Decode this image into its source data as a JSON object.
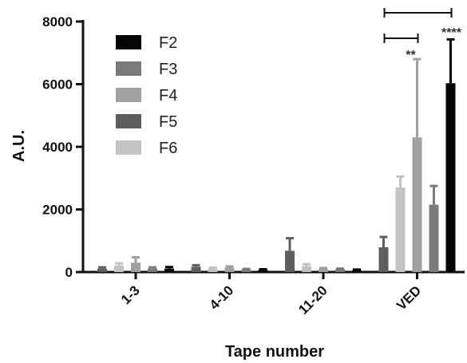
{
  "chart_data": {
    "type": "bar",
    "title": "",
    "xlabel": "Tape number",
    "ylabel": "A.U.",
    "ylim": [
      0,
      8000
    ],
    "yticks": [
      0,
      2000,
      4000,
      6000,
      8000
    ],
    "ytick_labels": [
      "0",
      "2000",
      "4000",
      "6000",
      "8000"
    ],
    "categories": [
      "1-3",
      "4-10",
      "11-20",
      "VED"
    ],
    "legend_position": "top-left",
    "grid": false,
    "series": [
      {
        "name": "F5",
        "color": "#5e5e5e",
        "values": [
          110,
          170,
          680,
          790
        ],
        "errors": [
          40,
          50,
          400,
          330
        ]
      },
      {
        "name": "F6",
        "color": "#c3c3c3",
        "values": [
          210,
          110,
          190,
          2700
        ],
        "errors": [
          70,
          30,
          60,
          350
        ]
      },
      {
        "name": "F4",
        "color": "#a0a0a0",
        "values": [
          300,
          140,
          100,
          4300
        ],
        "errors": [
          170,
          40,
          30,
          2500
        ]
      },
      {
        "name": "F3",
        "color": "#7a7a7a",
        "values": [
          110,
          80,
          90,
          2150
        ],
        "errors": [
          40,
          20,
          20,
          600
        ]
      },
      {
        "name": "F2",
        "color": "#050505",
        "values": [
          110,
          70,
          60,
          6030
        ],
        "errors": [
          50,
          20,
          20,
          1400
        ]
      }
    ],
    "legend_order": [
      "F2",
      "F3",
      "F4",
      "F5",
      "F6"
    ],
    "annotations": [
      {
        "label": "**",
        "from_series": "F5",
        "to_series": "F4",
        "category": "VED"
      },
      {
        "label": "****",
        "from_series": "F5",
        "to_series": "F2",
        "category": "VED"
      }
    ]
  }
}
